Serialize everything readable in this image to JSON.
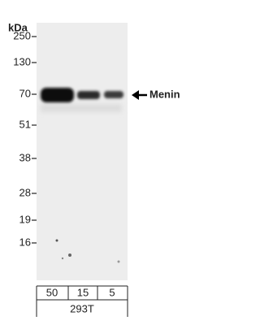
{
  "unit": "kDa",
  "markers": [
    "250",
    "130",
    "70",
    "51",
    "38",
    "28",
    "19",
    "16"
  ],
  "target": "Menin",
  "lanes": [
    "50",
    "15",
    "5"
  ],
  "sample": "293T"
}
